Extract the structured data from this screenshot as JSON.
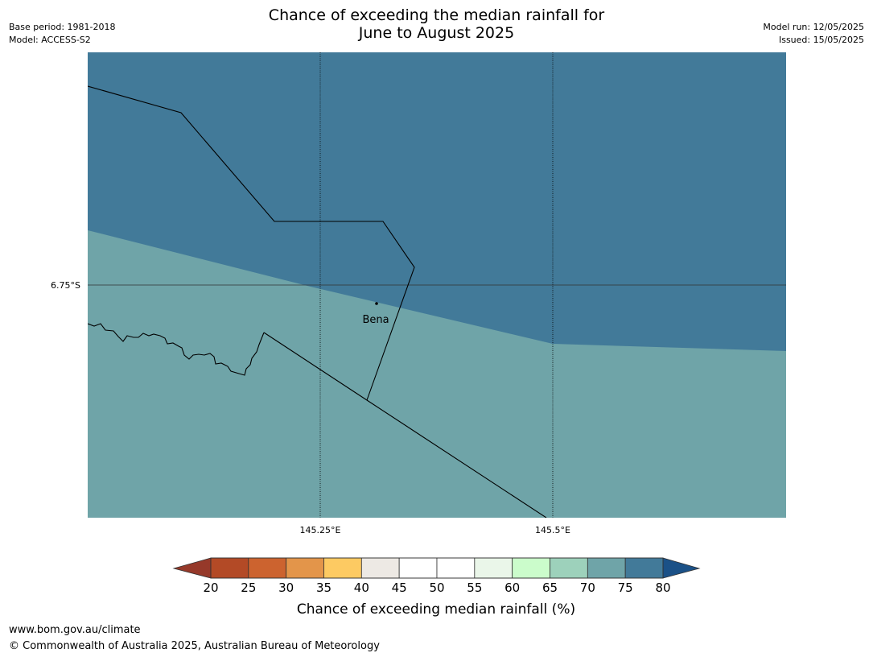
{
  "title": {
    "line1": "Chance of exceeding the median rainfall for",
    "line2": "June to August 2025"
  },
  "meta_left": {
    "base_period": "Base period: 1981-2018",
    "model": "Model: ACCESS-S2"
  },
  "meta_right": {
    "model_run": "Model run: 12/05/2025",
    "issued": "Issued: 15/05/2025"
  },
  "map": {
    "lat_label": "6.75°S",
    "lon_labels": [
      "145.25°E",
      "145.5°E"
    ],
    "place": "Bena",
    "region_colors": {
      "upper": "#427a99",
      "lower": "#6fa4a8"
    }
  },
  "legend": {
    "ticks": [
      "20",
      "25",
      "30",
      "35",
      "40",
      "45",
      "50",
      "55",
      "60",
      "65",
      "70",
      "75",
      "80"
    ],
    "below_color": "#96392a",
    "above_color": "#1b5187",
    "bin_colors": [
      "#b34a26",
      "#cc632f",
      "#e3954a",
      "#fdca62",
      "#ede9e4",
      "#ffffff",
      "#ffffff",
      "#eaf6e9",
      "#cbfccb",
      "#9dd1bb",
      "#6fa4a8",
      "#427a99"
    ],
    "label": "Chance of exceeding median rainfall (%)"
  },
  "footer": {
    "url": "www.bom.gov.au/climate",
    "copyright": "© Commonwealth of Australia 2025, Australian Bureau of Meteorology"
  }
}
